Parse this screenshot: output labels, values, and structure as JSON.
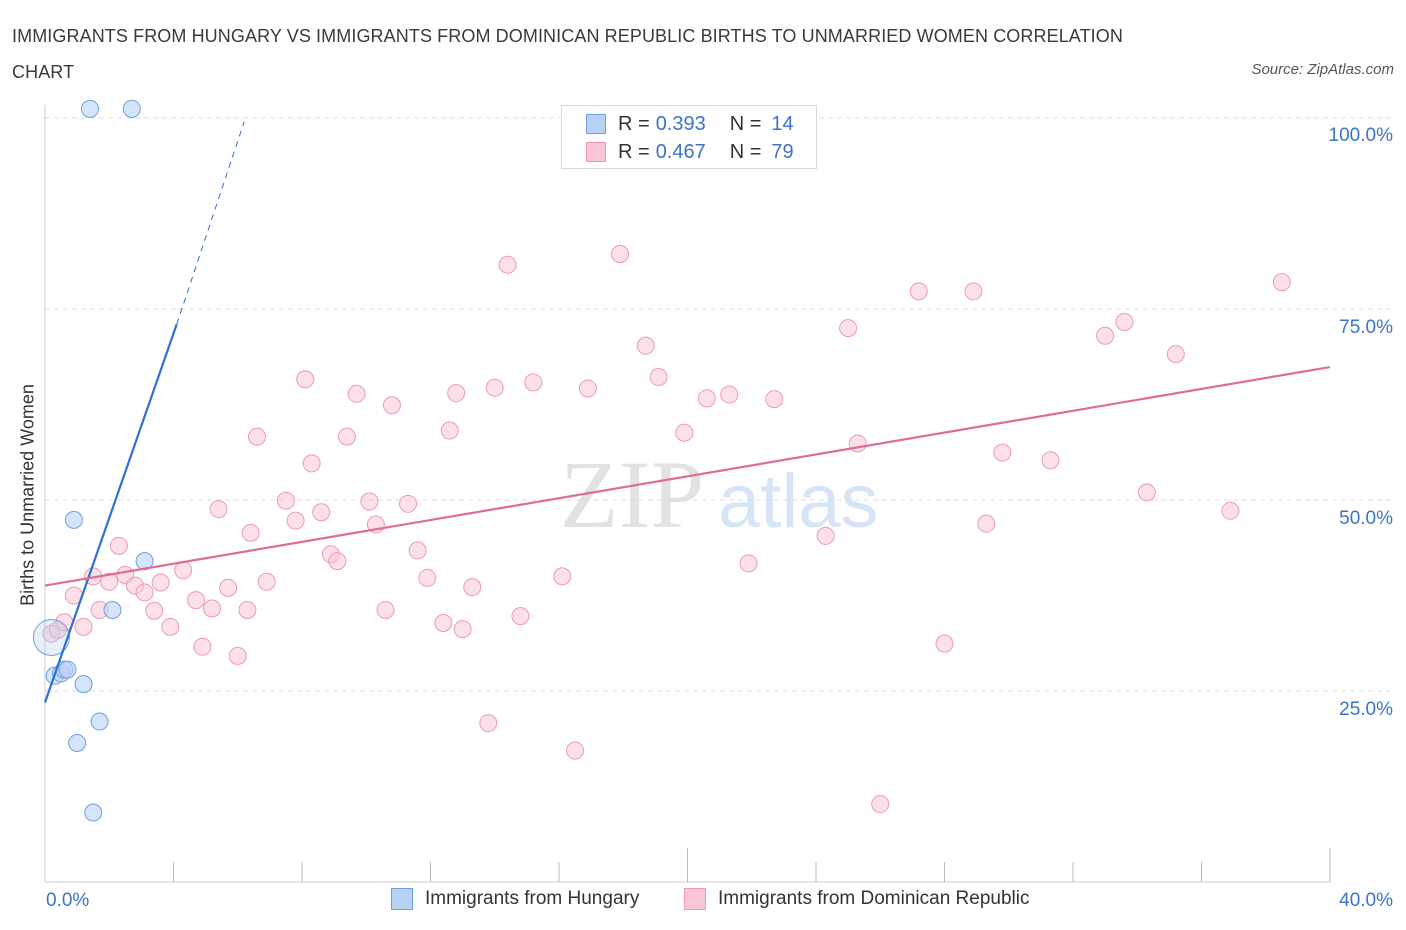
{
  "title": "IMMIGRANTS FROM HUNGARY VS IMMIGRANTS FROM DOMINICAN REPUBLIC BIRTHS TO UNMARRIED WOMEN CORRELATION CHART",
  "source": "Source: ZipAtlas.com",
  "colors": {
    "hungary_fill": "#b8d2f5",
    "hungary_stroke": "#6f9fe0",
    "hungary_line": "#2f6fd6",
    "dominican_fill": "#f8c6d5",
    "dominican_stroke": "#ee9ab4",
    "dominican_line": "#e26b92",
    "axis_text": "#3a74c8",
    "grid": "#dddddd"
  },
  "legend": {
    "r_label": "R =",
    "n_label": "N =",
    "hungary": {
      "r": "0.393",
      "n": "14"
    },
    "dominican": {
      "r": "0.467",
      "n": "79"
    }
  },
  "bottom_legend": {
    "hungary": "Immigrants from Hungary",
    "dominican": "Immigrants from Dominican Republic"
  },
  "watermark": {
    "zip": "ZIP",
    "atlas": "atlas"
  },
  "chart_data": {
    "type": "scatter",
    "title": "IMMIGRANTS FROM HUNGARY VS IMMIGRANTS FROM DOMINICAN REPUBLIC BIRTHS TO UNMARRIED WOMEN CORRELATION CHART",
    "xlabel": "",
    "ylabel": "Births to Unmarried Women",
    "xlim": [
      0,
      40
    ],
    "ylim": [
      0,
      100
    ],
    "x_tick_labels": [
      "0.0%",
      "40.0%"
    ],
    "y_tick_labels": [
      "100.0%",
      "75.0%",
      "50.0%",
      "25.0%"
    ],
    "y_ticks": [
      100,
      75,
      50,
      25
    ],
    "grid": true,
    "legend_position": "top-center",
    "series": [
      {
        "name": "Immigrants from Hungary",
        "points": [
          [
            1.4,
            101.2
          ],
          [
            2.7,
            101.2
          ],
          [
            0.3,
            27.0
          ],
          [
            0.5,
            27.3
          ],
          [
            0.6,
            27.8
          ],
          [
            0.7,
            27.8
          ],
          [
            0.9,
            47.4
          ],
          [
            1.0,
            18.2
          ],
          [
            1.2,
            25.9
          ],
          [
            1.5,
            9.1
          ],
          [
            1.7,
            21.0
          ],
          [
            2.1,
            35.6
          ],
          [
            3.1,
            42.0
          ],
          [
            0.2,
            32.0
          ]
        ],
        "trend": {
          "x": [
            0.0,
            4.1
          ],
          "y": [
            23.5,
            73.0
          ],
          "dashed_to": [
            6.2,
            99.5
          ]
        }
      },
      {
        "name": "Immigrants from Dominican Republic",
        "points": [
          [
            0.2,
            32.5
          ],
          [
            0.4,
            33.0
          ],
          [
            0.6,
            34.0
          ],
          [
            0.9,
            37.5
          ],
          [
            1.2,
            33.4
          ],
          [
            1.5,
            40.0
          ],
          [
            1.7,
            35.6
          ],
          [
            2.0,
            39.3
          ],
          [
            2.3,
            44.0
          ],
          [
            2.5,
            40.2
          ],
          [
            2.8,
            38.8
          ],
          [
            3.1,
            37.9
          ],
          [
            3.4,
            35.5
          ],
          [
            3.6,
            39.2
          ],
          [
            3.9,
            33.4
          ],
          [
            4.3,
            40.8
          ],
          [
            4.7,
            36.9
          ],
          [
            4.9,
            30.8
          ],
          [
            5.2,
            35.8
          ],
          [
            5.4,
            48.8
          ],
          [
            5.7,
            38.5
          ],
          [
            6.0,
            29.6
          ],
          [
            6.3,
            35.6
          ],
          [
            6.4,
            45.7
          ],
          [
            6.6,
            58.3
          ],
          [
            6.9,
            39.3
          ],
          [
            7.5,
            49.9
          ],
          [
            7.8,
            47.3
          ],
          [
            8.1,
            65.8
          ],
          [
            8.3,
            54.8
          ],
          [
            8.6,
            48.4
          ],
          [
            8.9,
            42.9
          ],
          [
            9.1,
            42.0
          ],
          [
            9.4,
            58.3
          ],
          [
            9.7,
            63.9
          ],
          [
            10.1,
            49.8
          ],
          [
            10.3,
            46.8
          ],
          [
            10.6,
            35.6
          ],
          [
            10.8,
            62.4
          ],
          [
            11.3,
            49.5
          ],
          [
            11.6,
            43.4
          ],
          [
            11.9,
            39.8
          ],
          [
            12.4,
            33.9
          ],
          [
            12.6,
            59.1
          ],
          [
            12.8,
            64.0
          ],
          [
            13.0,
            33.1
          ],
          [
            13.3,
            38.6
          ],
          [
            13.8,
            20.8
          ],
          [
            14.0,
            64.7
          ],
          [
            14.4,
            80.8
          ],
          [
            14.8,
            34.8
          ],
          [
            15.2,
            65.4
          ],
          [
            16.1,
            40.0
          ],
          [
            16.5,
            17.2
          ],
          [
            16.9,
            64.6
          ],
          [
            17.9,
            82.2
          ],
          [
            18.7,
            70.2
          ],
          [
            19.1,
            66.1
          ],
          [
            19.9,
            58.8
          ],
          [
            20.6,
            63.3
          ],
          [
            21.3,
            63.8
          ],
          [
            21.9,
            41.7
          ],
          [
            22.7,
            63.2
          ],
          [
            24.3,
            45.3
          ],
          [
            25.0,
            72.5
          ],
          [
            25.3,
            57.4
          ],
          [
            26.0,
            10.2
          ],
          [
            27.2,
            77.3
          ],
          [
            28.0,
            31.2
          ],
          [
            28.9,
            77.3
          ],
          [
            29.3,
            46.9
          ],
          [
            29.8,
            56.2
          ],
          [
            31.3,
            55.2
          ],
          [
            33.0,
            71.5
          ],
          [
            33.6,
            73.3
          ],
          [
            34.3,
            51.0
          ],
          [
            35.2,
            69.1
          ],
          [
            36.9,
            48.6
          ],
          [
            38.5,
            78.5
          ]
        ],
        "trend": {
          "x": [
            0.0,
            40.0
          ],
          "y": [
            38.8,
            67.4
          ]
        }
      }
    ]
  }
}
